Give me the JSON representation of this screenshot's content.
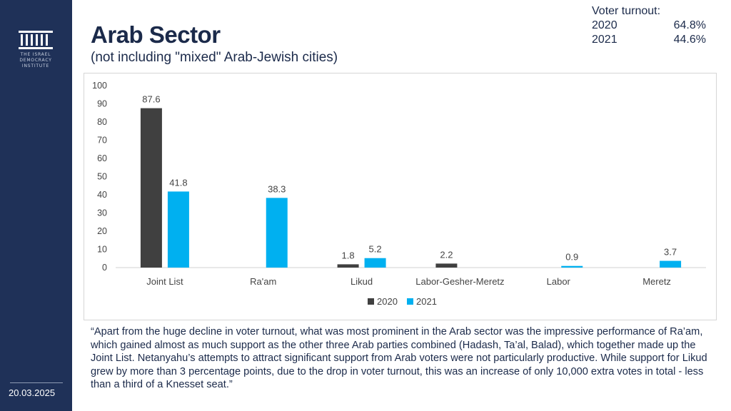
{
  "sidebar": {
    "logo_lines": [
      "THE ISRAEL",
      "DEMOCRACY",
      "INSTITUTE"
    ],
    "date": "20.03.2025",
    "background_color": "#1f3158"
  },
  "header": {
    "title": "Arab Sector",
    "subtitle": "(not including \"mixed\" Arab-Jewish cities)"
  },
  "turnout": {
    "label": "Voter turnout:",
    "rows": [
      {
        "year": "2020",
        "value": "64.8%"
      },
      {
        "year": "2021",
        "value": "44.6%"
      }
    ]
  },
  "chart_data": {
    "type": "bar",
    "categories": [
      "Joint List",
      "Ra'am",
      "Likud",
      "Labor-Gesher-Meretz",
      "Labor",
      "Meretz"
    ],
    "series": [
      {
        "name": "2020",
        "color": "#404040",
        "values": [
          87.6,
          null,
          1.8,
          2.2,
          null,
          null
        ]
      },
      {
        "name": "2021",
        "color": "#00b0f0",
        "values": [
          41.8,
          38.3,
          5.2,
          null,
          0.9,
          3.7
        ]
      }
    ],
    "ylim": [
      0,
      100
    ],
    "yticks": [
      0,
      10,
      20,
      30,
      40,
      50,
      60,
      70,
      80,
      90,
      100
    ],
    "data_labels": true,
    "grid": false,
    "legend_position": "bottom"
  },
  "quote": "“Apart from the huge decline in voter turnout, what was most  prominent  in the Arab sector was the impressive performance of Ra’am, which gained almost as much support as the other three Arab parties combined (Hadash, Ta’al, Balad), which together made up the Joint List. Netanyahu’s attempts to attract significant support from Arab voters were not particularly productive. While support for Likud grew by more than 3 percentage points, due to the drop  in voter turnout, this was an increase of  only 10,000 extra votes in total - less than a third of a Knesset seat.”"
}
